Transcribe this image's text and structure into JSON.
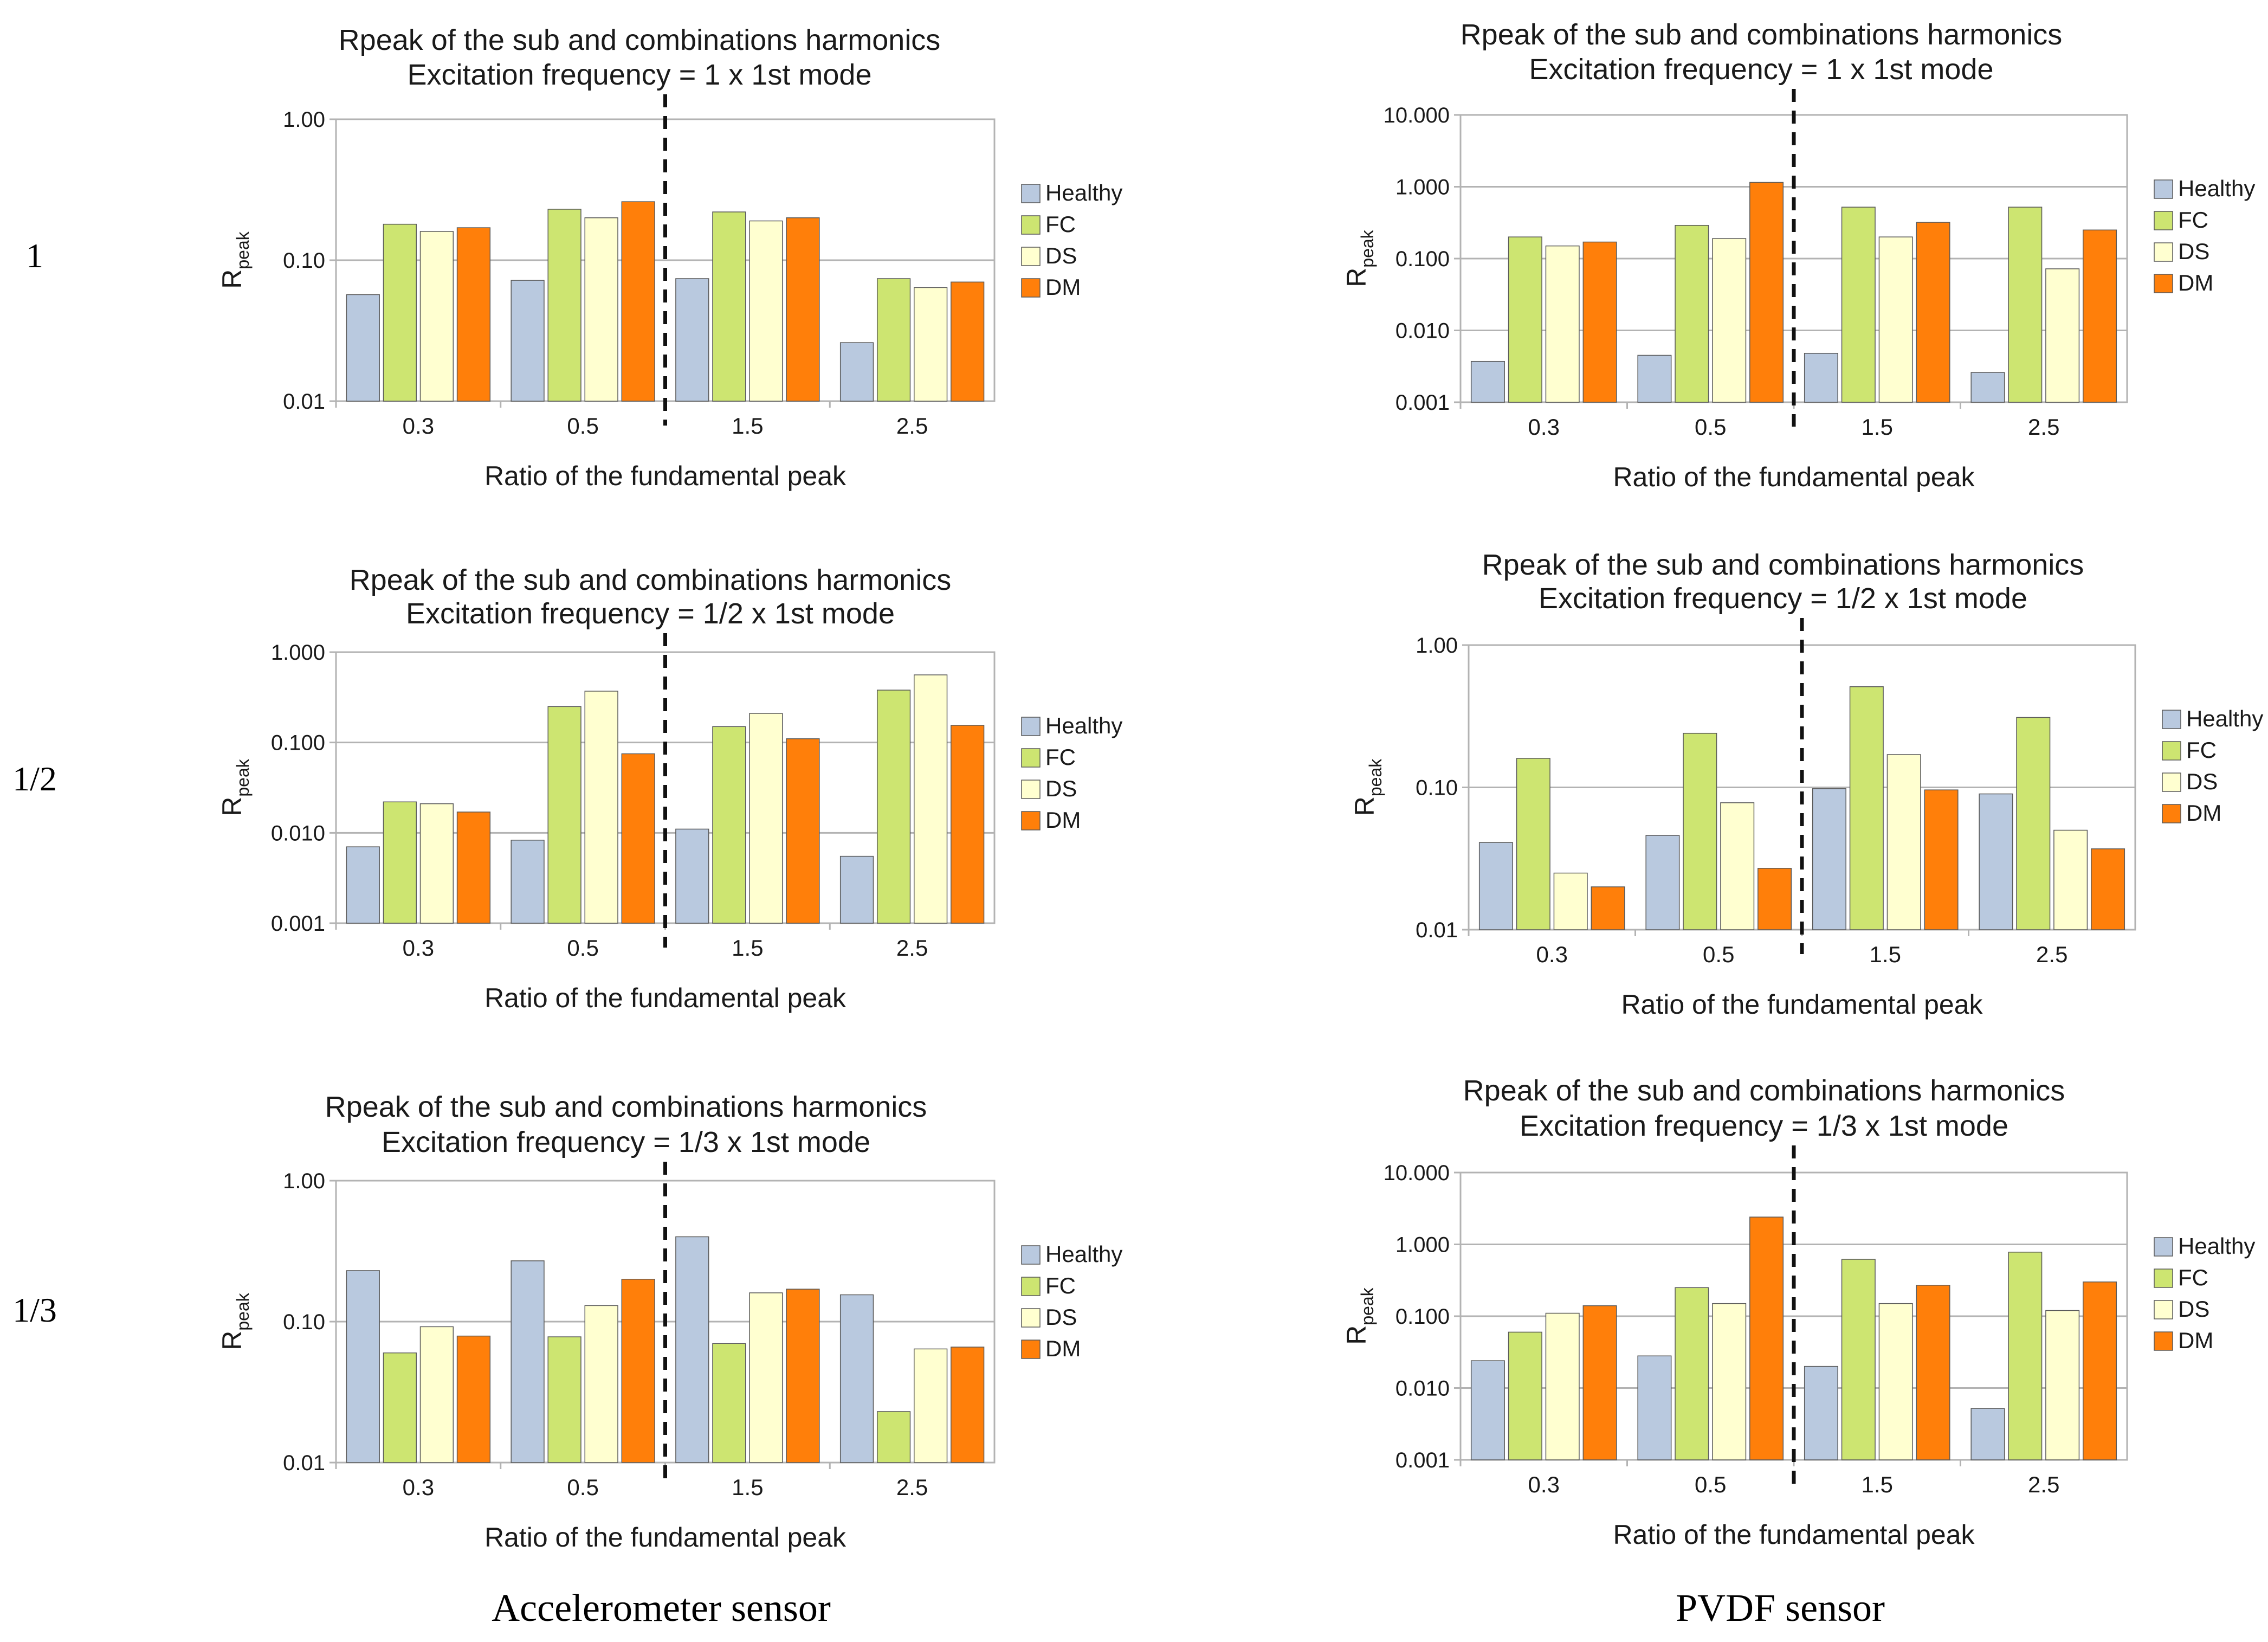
{
  "row_labels": [
    "1",
    "1/2",
    "1/3"
  ],
  "sensor_labels": [
    "Accelerometer sensor",
    "PVDF sensor"
  ],
  "legend": [
    "Healthy",
    "FC",
    "DS",
    "DM"
  ],
  "colors": {
    "Healthy": "#b9c9df",
    "FC": "#cde571",
    "DS": "#ffffd0",
    "DM": "#ff7f0a"
  },
  "chart_data": [
    {
      "type": "bar",
      "title_line1": "Rpeak of the sub and combinations harmonics",
      "title_line2": "Excitation frequency = 1 x 1st mode",
      "ylabel": "R",
      "ylabel_sub": "peak",
      "xlabel": "Ratio of the fundamental peak",
      "yscale": "log",
      "ylim": [
        0.01,
        1
      ],
      "yticks": [
        "0.01",
        "0.10",
        "1.00"
      ],
      "categories": [
        "0.3",
        "0.5",
        "1.5",
        "2.5"
      ],
      "series": [
        {
          "name": "Healthy",
          "values": [
            0.057,
            0.072,
            0.074,
            0.026
          ]
        },
        {
          "name": "FC",
          "values": [
            0.18,
            0.23,
            0.22,
            0.074
          ]
        },
        {
          "name": "DS",
          "values": [
            0.16,
            0.2,
            0.19,
            0.064
          ]
        },
        {
          "name": "DM",
          "values": [
            0.17,
            0.26,
            0.2,
            0.07
          ]
        }
      ]
    },
    {
      "type": "bar",
      "title_line1": "Rpeak of the sub and combinations harmonics",
      "title_line2": "Excitation frequency = 1 x 1st mode",
      "ylabel": "R",
      "ylabel_sub": "peak",
      "xlabel": "Ratio of the fundamental peak",
      "yscale": "log",
      "ylim": [
        0.001,
        10
      ],
      "yticks": [
        "0.001",
        "0.010",
        "0.100",
        "1.000",
        "10.000"
      ],
      "categories": [
        "0.3",
        "0.5",
        "1.5",
        "2.5"
      ],
      "series": [
        {
          "name": "Healthy",
          "values": [
            0.0037,
            0.0045,
            0.0048,
            0.0026
          ]
        },
        {
          "name": "FC",
          "values": [
            0.2,
            0.29,
            0.52,
            0.52
          ]
        },
        {
          "name": "DS",
          "values": [
            0.15,
            0.19,
            0.2,
            0.072
          ]
        },
        {
          "name": "DM",
          "values": [
            0.17,
            1.15,
            0.32,
            0.25
          ]
        }
      ]
    },
    {
      "type": "bar",
      "title_line1": "Rpeak of the sub and combinations harmonics",
      "title_line2": "Excitation frequency = 1/2 x 1st mode",
      "ylabel": "R",
      "ylabel_sub": "peak",
      "xlabel": "Ratio of the fundamental peak",
      "yscale": "log",
      "ylim": [
        0.001,
        1
      ],
      "yticks": [
        "0.001",
        "0.010",
        "0.100",
        "1.000"
      ],
      "categories": [
        "0.3",
        "0.5",
        "1.5",
        "2.5"
      ],
      "series": [
        {
          "name": "Healthy",
          "values": [
            0.007,
            0.0083,
            0.011,
            0.0055
          ]
        },
        {
          "name": "FC",
          "values": [
            0.022,
            0.25,
            0.15,
            0.38
          ]
        },
        {
          "name": "DS",
          "values": [
            0.021,
            0.37,
            0.21,
            0.56
          ]
        },
        {
          "name": "DM",
          "values": [
            0.017,
            0.075,
            0.11,
            0.155
          ]
        }
      ]
    },
    {
      "type": "bar",
      "title_line1": "Rpeak of the sub and combinations harmonics",
      "title_line2": "Excitation frequency = 1/2 x 1st mode",
      "ylabel": "R",
      "ylabel_sub": "peak",
      "xlabel": "Ratio of the fundamental peak",
      "yscale": "log",
      "ylim": [
        0.01,
        1
      ],
      "yticks": [
        "0.01",
        "0.10",
        "1.00"
      ],
      "categories": [
        "0.3",
        "0.5",
        "1.5",
        "2.5"
      ],
      "series": [
        {
          "name": "Healthy",
          "values": [
            0.041,
            0.046,
            0.098,
            0.09
          ]
        },
        {
          "name": "FC",
          "values": [
            0.16,
            0.24,
            0.51,
            0.31
          ]
        },
        {
          "name": "DS",
          "values": [
            0.025,
            0.078,
            0.17,
            0.05
          ]
        },
        {
          "name": "DM",
          "values": [
            0.02,
            0.027,
            0.096,
            0.037
          ]
        }
      ]
    },
    {
      "type": "bar",
      "title_line1": "Rpeak of the sub and combinations harmonics",
      "title_line2": "Excitation frequency = 1/3 x 1st mode",
      "ylabel": "R",
      "ylabel_sub": "peak",
      "xlabel": "Ratio of the fundamental peak",
      "yscale": "log",
      "ylim": [
        0.01,
        1
      ],
      "yticks": [
        "0.01",
        "0.10",
        "1.00"
      ],
      "categories": [
        "0.3",
        "0.5",
        "1.5",
        "2.5"
      ],
      "series": [
        {
          "name": "Healthy",
          "values": [
            0.23,
            0.27,
            0.4,
            0.155
          ]
        },
        {
          "name": "FC",
          "values": [
            0.06,
            0.078,
            0.07,
            0.023
          ]
        },
        {
          "name": "DS",
          "values": [
            0.092,
            0.13,
            0.16,
            0.064
          ]
        },
        {
          "name": "DM",
          "values": [
            0.079,
            0.2,
            0.17,
            0.066
          ]
        }
      ]
    },
    {
      "type": "bar",
      "title_line1": "Rpeak of the sub and combinations harmonics",
      "title_line2": "Excitation frequency = 1/3 x 1st mode",
      "ylabel": "R",
      "ylabel_sub": "peak",
      "xlabel": "Ratio of the fundamental peak",
      "yscale": "log",
      "ylim": [
        0.001,
        10
      ],
      "yticks": [
        "0.001",
        "0.010",
        "0.100",
        "1.000",
        "10.000"
      ],
      "categories": [
        "0.3",
        "0.5",
        "1.5",
        "2.5"
      ],
      "series": [
        {
          "name": "Healthy",
          "values": [
            0.024,
            0.028,
            0.02,
            0.0052
          ]
        },
        {
          "name": "FC",
          "values": [
            0.06,
            0.25,
            0.62,
            0.78
          ]
        },
        {
          "name": "DS",
          "values": [
            0.11,
            0.15,
            0.15,
            0.12
          ]
        },
        {
          "name": "DM",
          "values": [
            0.14,
            2.4,
            0.27,
            0.3
          ]
        }
      ]
    }
  ]
}
